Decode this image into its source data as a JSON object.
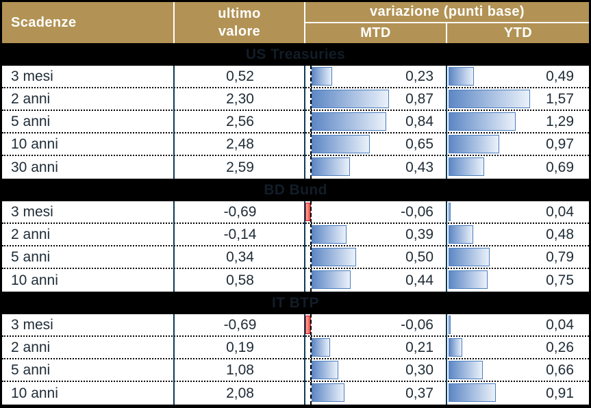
{
  "header": {
    "col_scadenze": "Scadenze",
    "col_ultimo_line1": "ultimo",
    "col_ultimo_line2": "valore",
    "col_variazione": "variazione (punti base)",
    "col_mtd": "MTD",
    "col_ytd": "YTD"
  },
  "colors": {
    "header_gold": "#b29355",
    "header_text": "#ffffff",
    "grid_line_navy": "#0e3a52",
    "bar_blue_dark": "#5d87c5",
    "bar_blue_light": "#eaf1fa",
    "bar_blue_border": "#4a7dbd",
    "bar_negative_red": "#e24638",
    "bar_negative_border": "#cf1020",
    "section_band_bg": "#000000",
    "section_band_text": "#121d28"
  },
  "sections": [
    {
      "title": "US Treasuries",
      "rows": [
        {
          "label": "3 mesi",
          "ultimo": "0,52",
          "mtd": "0,23",
          "mtd_val": 0.23,
          "ytd": "0,49",
          "ytd_val": 0.49
        },
        {
          "label": "2 anni",
          "ultimo": "2,30",
          "mtd": "0,87",
          "mtd_val": 0.87,
          "ytd": "1,57",
          "ytd_val": 1.57
        },
        {
          "label": "5 anni",
          "ultimo": "2,56",
          "mtd": "0,84",
          "mtd_val": 0.84,
          "ytd": "1,29",
          "ytd_val": 1.29
        },
        {
          "label": "10 anni",
          "ultimo": "2,48",
          "mtd": "0,65",
          "mtd_val": 0.65,
          "ytd": "0,97",
          "ytd_val": 0.97
        },
        {
          "label": "30 anni",
          "ultimo": "2,59",
          "mtd": "0,43",
          "mtd_val": 0.43,
          "ytd": "0,69",
          "ytd_val": 0.69
        }
      ]
    },
    {
      "title": "BD Bund",
      "rows": [
        {
          "label": "3 mesi",
          "ultimo": "-0,69",
          "mtd": "-0,06",
          "mtd_val": -0.06,
          "ytd": "0,04",
          "ytd_val": 0.04
        },
        {
          "label": "2 anni",
          "ultimo": "-0,14",
          "mtd": "0,39",
          "mtd_val": 0.39,
          "ytd": "0,48",
          "ytd_val": 0.48
        },
        {
          "label": "5 anni",
          "ultimo": "0,34",
          "mtd": "0,50",
          "mtd_val": 0.5,
          "ytd": "0,79",
          "ytd_val": 0.79
        },
        {
          "label": "10 anni",
          "ultimo": "0,58",
          "mtd": "0,44",
          "mtd_val": 0.44,
          "ytd": "0,75",
          "ytd_val": 0.75
        }
      ]
    },
    {
      "title": "IT BTP",
      "rows": [
        {
          "label": "3 mesi",
          "ultimo": "-0,69",
          "mtd": "-0,06",
          "mtd_val": -0.06,
          "ytd": "0,04",
          "ytd_val": 0.04
        },
        {
          "label": "2 anni",
          "ultimo": "0,19",
          "mtd": "0,21",
          "mtd_val": 0.21,
          "ytd": "0,26",
          "ytd_val": 0.26
        },
        {
          "label": "5 anni",
          "ultimo": "1,08",
          "mtd": "0,30",
          "mtd_val": 0.3,
          "ytd": "0,66",
          "ytd_val": 0.66
        },
        {
          "label": "10 anni",
          "ultimo": "2,08",
          "mtd": "0,37",
          "mtd_val": 0.37,
          "ytd": "0,91",
          "ytd_val": 0.91
        }
      ]
    }
  ],
  "chart_data": {
    "type": "table",
    "title": "variazione (punti base)",
    "columns": [
      "Scadenze",
      "ultimo valore",
      "MTD (punti base)",
      "YTD (punti base)"
    ],
    "bar_columns": [
      "MTD",
      "YTD"
    ],
    "sections": [
      {
        "name": "US Treasuries",
        "rows": [
          [
            "3 mesi",
            0.52,
            0.23,
            0.49
          ],
          [
            "2 anni",
            2.3,
            0.87,
            1.57
          ],
          [
            "5 anni",
            2.56,
            0.84,
            1.29
          ],
          [
            "10 anni",
            2.48,
            0.65,
            0.97
          ],
          [
            "30 anni",
            2.59,
            0.43,
            0.69
          ]
        ]
      },
      {
        "name": "BD Bund",
        "rows": [
          [
            "3 mesi",
            -0.69,
            -0.06,
            0.04
          ],
          [
            "2 anni",
            -0.14,
            0.39,
            0.48
          ],
          [
            "5 anni",
            0.34,
            0.5,
            0.79
          ],
          [
            "10 anni",
            0.58,
            0.44,
            0.75
          ]
        ]
      },
      {
        "name": "IT BTP",
        "rows": [
          [
            "3 mesi",
            -0.69,
            -0.06,
            0.04
          ],
          [
            "2 anni",
            0.19,
            0.21,
            0.26
          ],
          [
            "5 anni",
            1.08,
            0.3,
            0.66
          ],
          [
            "10 anni",
            2.08,
            0.37,
            0.91
          ]
        ]
      }
    ],
    "notes": "Horizontal data bars: blue gradient for positive values, red for negative values. MTD column axis offset for negatives; decimal comma (Italian locale)."
  }
}
